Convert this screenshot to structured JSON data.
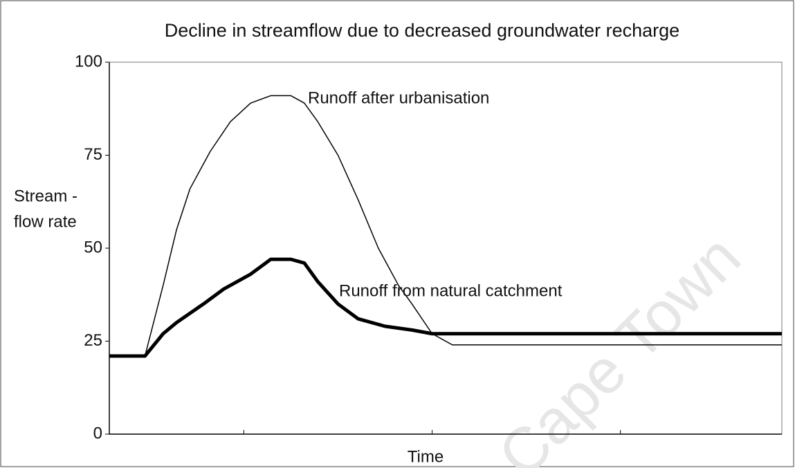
{
  "chart_data": {
    "type": "line",
    "title": "Decline in streamflow due to decreased groundwater recharge",
    "ylabel": [
      "Stream -",
      "flow rate"
    ],
    "xlabel": "Time",
    "watermark": "Cape Town",
    "xlim": [
      0,
      100
    ],
    "xticks": [
      20,
      48,
      76
    ],
    "ylim": [
      0,
      100
    ],
    "yticks": [
      0,
      25,
      50,
      75,
      100
    ],
    "series": [
      {
        "name": "Runoff after urbanisation",
        "color": "#000000",
        "width": 1.5,
        "x": [
          0,
          5.3,
          8,
          10,
          12,
          15,
          18,
          21,
          24,
          27,
          29,
          31,
          34,
          37,
          40,
          43,
          45,
          48,
          51,
          100
        ],
        "values": [
          21,
          21,
          40,
          55,
          66,
          76,
          84,
          89,
          91,
          91,
          89,
          84,
          75,
          63,
          50,
          40,
          35,
          27,
          24,
          24
        ]
      },
      {
        "name": "Runoff from natural catchment",
        "color": "#000000",
        "width": 5,
        "x": [
          0,
          5.3,
          8,
          10,
          14,
          17,
          21,
          24,
          27,
          29,
          31,
          34,
          37,
          41,
          45,
          48,
          100
        ],
        "values": [
          21,
          21,
          27,
          30,
          35,
          39,
          43,
          47,
          47,
          46,
          41,
          35,
          31,
          29,
          28,
          27,
          27
        ]
      }
    ]
  }
}
